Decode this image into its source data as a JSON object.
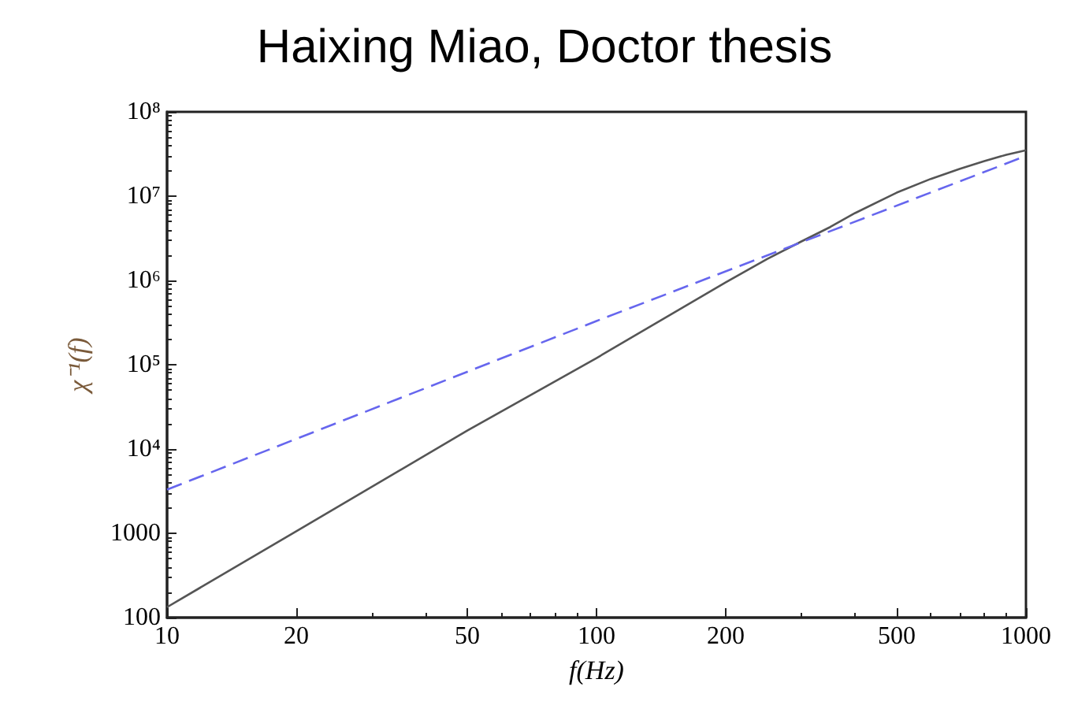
{
  "chart_data": {
    "type": "line",
    "title": "Haixing Miao, Doctor thesis",
    "xlabel": "f(Hz)",
    "ylabel": "χ⁻¹(f)",
    "log": "xy",
    "grid": false,
    "xlim": [
      10,
      1000
    ],
    "xticks": [
      10,
      20,
      50,
      100,
      200,
      500,
      1000
    ],
    "ylim": [
      100,
      100000000
    ],
    "yticks": [
      100,
      1000,
      {
        "value": 10000,
        "label": "10⁴"
      },
      {
        "value": 100000,
        "label": "10⁵"
      },
      {
        "value": 1000000,
        "label": "10⁶"
      },
      {
        "value": 10000000,
        "label": "10⁷"
      },
      {
        "value": 100000000,
        "label": "10⁸"
      }
    ],
    "series": [
      {
        "color": "#555555",
        "line_style": "solid",
        "x": [
          10,
          20,
          50,
          100,
          200,
          250,
          300,
          350,
          400,
          500,
          600,
          700,
          800,
          900,
          1000
        ],
        "values": [
          133,
          1060,
          16500,
          120000,
          950000,
          1800000,
          2900000,
          4300000,
          6300000,
          11000000,
          16000000,
          21000000,
          26000000,
          31000000,
          35000000
        ]
      },
      {
        "color": "#6666ee",
        "line_style": "dashed",
        "x": [
          10,
          100,
          1000
        ],
        "values": [
          3300,
          330000,
          30000000
        ]
      }
    ]
  }
}
